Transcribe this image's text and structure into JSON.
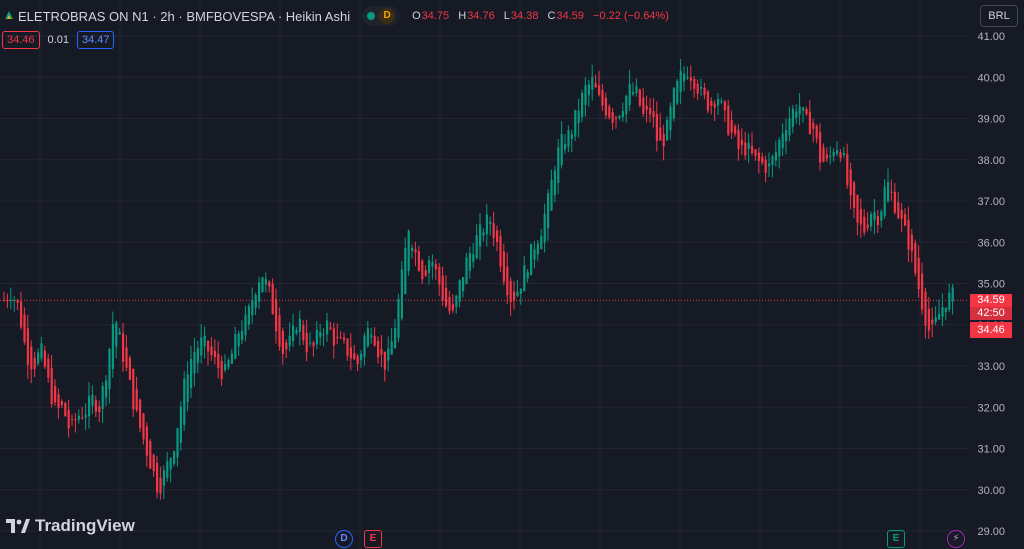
{
  "header": {
    "title": "ELETROBRAS ON N1 · 2h · BMFBOVESPA · Heikin Ashi",
    "d_badge": "D",
    "ohlc": {
      "o_label": "O",
      "o": "34.75",
      "h_label": "H",
      "h": "34.76",
      "l_label": "L",
      "l": "34.38",
      "c_label": "C",
      "c": "34.59",
      "change": "−0.22 (−0.64%)"
    }
  },
  "indicator": {
    "v1": "34.46",
    "v2": "0.01",
    "v3": "34.47"
  },
  "currency_button": "BRL",
  "price_labels": {
    "last": "34.59",
    "countdown": "42:50",
    "indicator_value": "34.46"
  },
  "brand": "TradingView",
  "events": [
    {
      "label": "D",
      "kind": "dividend"
    },
    {
      "label": "E",
      "kind": "earnings"
    },
    {
      "label": "E",
      "kind": "earnings"
    },
    {
      "label": "⚡",
      "kind": "split"
    }
  ],
  "colors": {
    "background": "#161a25",
    "up": "#089981",
    "down": "#f23645",
    "grid": "#232632",
    "axis_text": "#b2b5be",
    "last_price_line": "#f23645"
  },
  "chart_data": {
    "type": "candlestick",
    "style": "Heikin Ashi",
    "symbol": "ELETROBRAS ON N1",
    "exchange": "BMFBOVESPA",
    "interval": "2h",
    "currency": "BRL",
    "y_ticks": [
      "41.00",
      "40.00",
      "39.00",
      "38.00",
      "37.00",
      "36.00",
      "35.00",
      "34.00",
      "33.00",
      "32.00",
      "31.00",
      "30.00",
      "29.00"
    ],
    "ylim": [
      28.88,
      41.2
    ],
    "last_price": 34.59,
    "grid": true,
    "close_path": [
      34.6,
      34.8,
      34.4,
      33.3,
      33.0,
      33.4,
      32.6,
      31.9,
      32.0,
      31.4,
      31.8,
      31.9,
      32.2,
      32.0,
      33.0,
      34.3,
      33.4,
      32.6,
      31.8,
      31.2,
      30.6,
      30.0,
      30.5,
      31.0,
      32.0,
      33.0,
      33.4,
      33.6,
      33.3,
      33.0,
      32.8,
      33.3,
      33.9,
      34.1,
      34.8,
      35.3,
      34.8,
      34.0,
      33.3,
      33.6,
      34.2,
      33.5,
      33.4,
      33.9,
      34.0,
      33.6,
      33.5,
      33.3,
      33.0,
      33.7,
      34.0,
      33.3,
      33.0,
      33.8,
      35.0,
      36.4,
      35.7,
      35.2,
      35.7,
      35.1,
      34.5,
      34.2,
      35.0,
      35.6,
      36.0,
      36.3,
      36.6,
      36.0,
      35.2,
      34.6,
      34.9,
      35.4,
      35.9,
      36.3,
      37.0,
      38.0,
      38.5,
      38.6,
      39.2,
      39.7,
      39.9,
      39.4,
      39.2,
      39.0,
      39.3,
      39.7,
      39.6,
      39.0,
      39.2,
      38.3,
      38.6,
      39.5,
      40.0,
      40.2,
      39.9,
      39.5,
      39.3,
      39.6,
      39.0,
      38.6,
      38.2,
      38.3,
      38.0,
      37.9,
      37.8,
      38.2,
      38.8,
      39.1,
      39.4,
      38.9,
      38.8,
      38.0,
      37.9,
      38.4,
      38.2,
      37.0,
      36.4,
      36.3,
      36.8,
      36.6,
      37.5,
      37.0,
      36.5,
      36.0,
      35.2,
      34.4,
      33.7,
      34.2,
      34.6,
      34.7
    ]
  }
}
